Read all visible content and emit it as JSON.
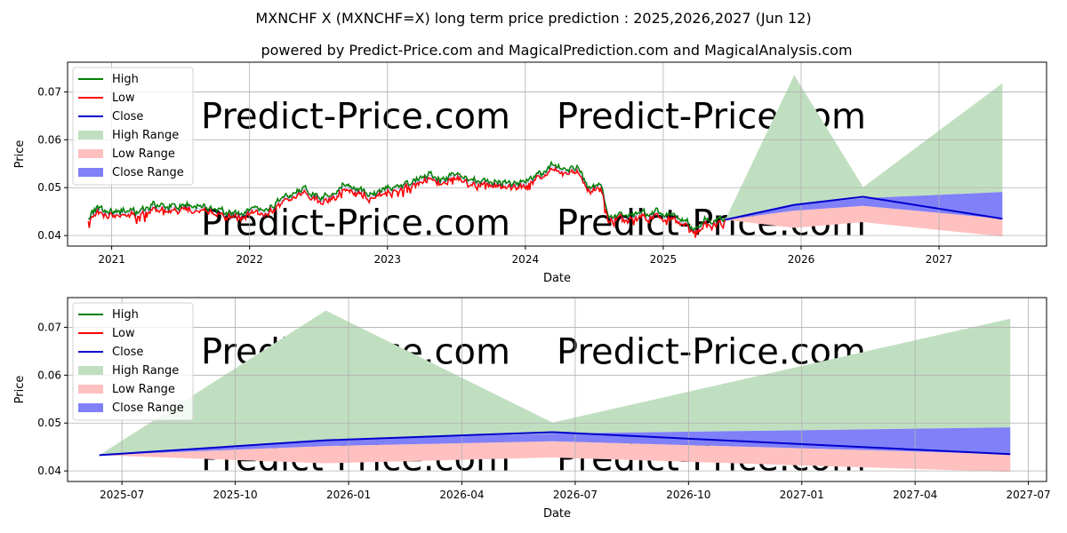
{
  "title": "MXNCHF X (MXNCHF=X) long term price prediction : 2025,2026,2027 (Jun 12)",
  "subtitle": "powered by Predict-Price.com and MagicalPrediction.com and MagicalAnalysis.com",
  "watermark": "Predict-Price.com",
  "colors": {
    "high": "#008000",
    "low": "#ff0000",
    "close": "#0000cd",
    "high_range": "#c0dfc0",
    "low_range": "#ffc0c0",
    "close_range": "#8080f8",
    "grid": "#b0b0b0"
  },
  "chart_data": [
    {
      "type": "line",
      "name": "long-term",
      "xlabel": "Date",
      "ylabel": "Price",
      "xlim": [
        2020.68,
        2027.78
      ],
      "ylim": [
        0.0378,
        0.0762
      ],
      "xticks": [
        2021,
        2022,
        2023,
        2024,
        2025,
        2026,
        2027
      ],
      "xtick_labels": [
        "2021",
        "2022",
        "2023",
        "2024",
        "2025",
        "2026",
        "2027"
      ],
      "yticks": [
        0.04,
        0.05,
        0.06,
        0.07
      ],
      "ytick_labels": [
        "0.04",
        "0.05",
        "0.06",
        "0.07"
      ],
      "legend": [
        "High",
        "Low",
        "Close",
        "High Range",
        "Low Range",
        "Close Range"
      ],
      "legend_position": "top-left",
      "history_anchors": {
        "x": [
          2020.83,
          2020.9,
          2021.0,
          2021.1,
          2021.2,
          2021.3,
          2021.4,
          2021.5,
          2021.6,
          2021.7,
          2021.8,
          2021.9,
          2022.0,
          2022.1,
          2022.2,
          2022.3,
          2022.4,
          2022.5,
          2022.6,
          2022.7,
          2022.8,
          2022.9,
          2023.0,
          2023.1,
          2023.2,
          2023.3,
          2023.4,
          2023.5,
          2023.6,
          2023.7,
          2023.8,
          2023.9,
          2024.0,
          2024.1,
          2024.2,
          2024.3,
          2024.38,
          2024.45,
          2024.5,
          2024.55,
          2024.6,
          2024.7,
          2024.8,
          2024.9,
          2025.0,
          2025.1,
          2025.2,
          2025.3,
          2025.45
        ],
        "close": [
          0.0435,
          0.0452,
          0.0446,
          0.0447,
          0.0441,
          0.046,
          0.0454,
          0.0458,
          0.0461,
          0.0455,
          0.0445,
          0.0441,
          0.0449,
          0.0451,
          0.0462,
          0.0483,
          0.0492,
          0.0475,
          0.048,
          0.0505,
          0.049,
          0.0482,
          0.0492,
          0.0502,
          0.0508,
          0.0522,
          0.0513,
          0.0523,
          0.0512,
          0.0507,
          0.0508,
          0.0503,
          0.0509,
          0.052,
          0.0545,
          0.0538,
          0.054,
          0.0495,
          0.0502,
          0.0492,
          0.044,
          0.0438,
          0.0436,
          0.0442,
          0.0443,
          0.0437,
          0.0412,
          0.0425,
          0.0432
        ]
      },
      "forecast": {
        "x": [
          2025.45,
          2025.95,
          2026.45,
          2027.46
        ],
        "close": [
          0.0433,
          0.0464,
          0.0481,
          0.0435
        ],
        "high_range_upper": [
          0.0433,
          0.0735,
          0.0501,
          0.0718
        ],
        "close_range_upper": [
          0.0433,
          0.0465,
          0.0478,
          0.0491
        ],
        "close_range_lower": [
          0.0433,
          0.0452,
          0.0462,
          0.0435
        ],
        "low_range_lower": [
          0.0433,
          0.0416,
          0.0428,
          0.0398
        ]
      }
    },
    {
      "type": "line",
      "name": "forecast-zoom",
      "xlabel": "Date",
      "ylabel": "Price",
      "xlim": [
        2025.38,
        2027.54
      ],
      "ylim": [
        0.0378,
        0.0762
      ],
      "xticks": [
        2025.5,
        2025.75,
        2026.0,
        2026.25,
        2026.5,
        2026.75,
        2027.0,
        2027.25,
        2027.5
      ],
      "xtick_labels": [
        "2025-07",
        "2025-10",
        "2026-01",
        "2026-04",
        "2026-07",
        "2026-10",
        "2027-01",
        "2027-04",
        "2027-07"
      ],
      "yticks": [
        0.04,
        0.05,
        0.06,
        0.07
      ],
      "ytick_labels": [
        "0.04",
        "0.05",
        "0.06",
        "0.07"
      ],
      "legend": [
        "High",
        "Low",
        "Close",
        "High Range",
        "Low Range",
        "Close Range"
      ],
      "legend_position": "top-left",
      "forecast": {
        "x": [
          2025.45,
          2025.95,
          2026.45,
          2027.46
        ],
        "close": [
          0.0433,
          0.0464,
          0.0481,
          0.0435
        ],
        "high_range_upper": [
          0.0433,
          0.0735,
          0.0501,
          0.0718
        ],
        "close_range_upper": [
          0.0433,
          0.0465,
          0.0478,
          0.0491
        ],
        "close_range_lower": [
          0.0433,
          0.0452,
          0.0462,
          0.0435
        ],
        "low_range_lower": [
          0.0433,
          0.0416,
          0.0428,
          0.0398
        ]
      }
    }
  ]
}
